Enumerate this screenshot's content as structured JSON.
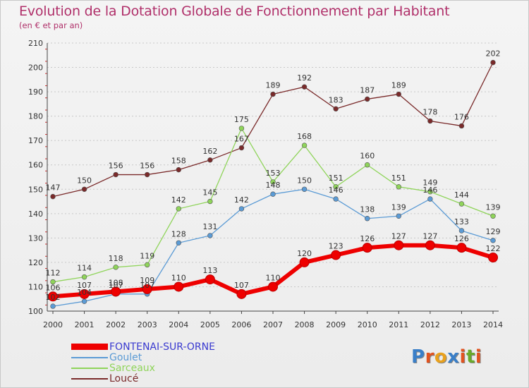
{
  "title": "Evolution de la Dotation Globale de Fonctionnement par Habitant",
  "subtitle": "(en € et par an)",
  "logo": {
    "text": "Proxiti",
    "letters": [
      "P",
      "r",
      "o",
      "x",
      "i",
      "t",
      "i"
    ],
    "colors": [
      "#3a7fc8",
      "#e2531f",
      "#e9a11d",
      "#3a7fc8",
      "#e2531f",
      "#6aaa2a",
      "#e2531f"
    ]
  },
  "chart_data": {
    "type": "line",
    "title": "Evolution de la Dotation Globale de Fonctionnement par Habitant",
    "subtitle": "(en € et par an)",
    "xlabel": "",
    "ylabel": "",
    "x": [
      "2000",
      "2001",
      "2002",
      "2003",
      "2004",
      "2005",
      "2006",
      "2007",
      "2008",
      "2009",
      "2010",
      "2011",
      "2012",
      "2013",
      "2014"
    ],
    "ylim": [
      100,
      210
    ],
    "yticks": [
      100,
      110,
      120,
      130,
      140,
      150,
      160,
      170,
      180,
      190,
      200,
      210
    ],
    "grid": "horizontal dotted",
    "legend": "bottom-left",
    "series": [
      {
        "name": "FONTENAI-SUR-ORNE",
        "color": "#ee0000",
        "values": [
          106,
          107,
          108,
          109,
          110,
          113,
          107,
          110,
          120,
          123,
          126,
          127,
          127,
          126,
          122
        ]
      },
      {
        "name": "Goulet",
        "color": "#5b9bd5",
        "values": [
          102,
          104,
          107,
          107,
          128,
          131,
          142,
          148,
          150,
          146,
          138,
          139,
          146,
          133,
          129
        ]
      },
      {
        "name": "Sarceaux",
        "color": "#8fd45a",
        "values": [
          112,
          114,
          118,
          119,
          142,
          145,
          175,
          153,
          168,
          151,
          160,
          151,
          149,
          144,
          139
        ]
      },
      {
        "name": "Loucé",
        "color": "#7a2a2a",
        "values": [
          147,
          150,
          156,
          156,
          158,
          162,
          167,
          189,
          192,
          183,
          187,
          189,
          178,
          176,
          202
        ]
      }
    ]
  }
}
